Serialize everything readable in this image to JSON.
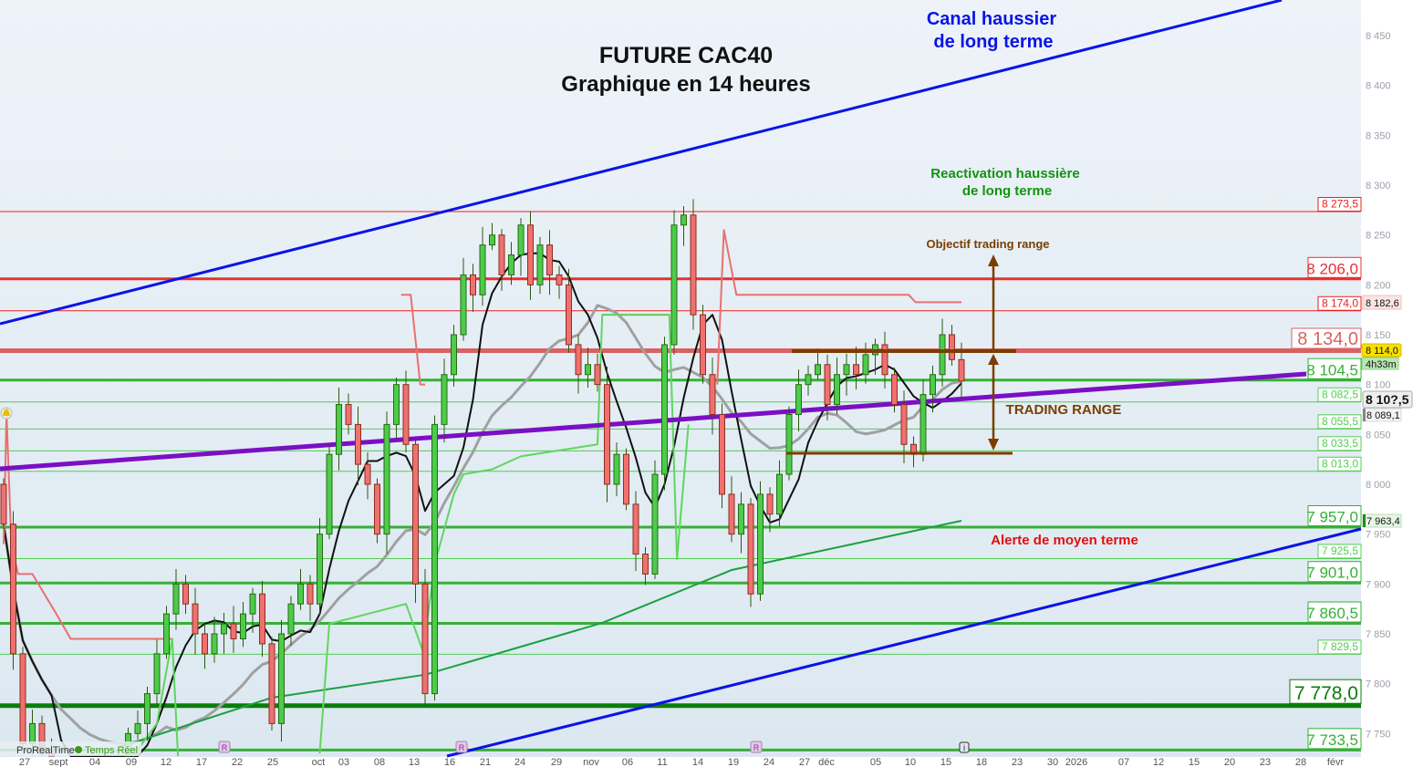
{
  "annotations": {
    "title_line1": "FUTURE CAC40",
    "title_line2": "Graphique en 14 heures",
    "channel_line1": "Canal haussier",
    "channel_line2": "de long terme",
    "reactivation_line1": "Reactivation haussière",
    "reactivation_line2": "de long terme",
    "objective": "Objectif trading range",
    "trading_range": "TRADING RANGE",
    "alert": "Alerte de moyen terme"
  },
  "footer": {
    "brand": "ProRealTime",
    "status": "Temps Réel"
  },
  "markers": {
    "r": "R",
    "info": "i"
  },
  "price_tags": {
    "upper_band": "8 182,6",
    "high": "8 114,0",
    "countdown": "4h33m",
    "last": "8 10?,5",
    "lower": "8 089,1",
    "ma_long": "7 963,4"
  },
  "colors": {
    "up": "#4ccc4c",
    "down": "#f07070",
    "channel": "#0a14e6",
    "support_trend": "#7b0fc4",
    "range": "#7a3e00"
  },
  "chart_data": {
    "type": "candlestick",
    "title": "FUTURE CAC40 — Graphique en 14 heures",
    "ylim": [
      7720,
      8470
    ],
    "y_ticks": [
      "8 450",
      "8 400",
      "8 350",
      "8 300",
      "8 250",
      "8 200",
      "8 150",
      "8 100",
      "8 050",
      "8 000",
      "7 950",
      "7 900",
      "7 850",
      "7 800",
      "7 750"
    ],
    "y_tick_values": [
      8450,
      8400,
      8350,
      8300,
      8250,
      8200,
      8150,
      8100,
      8050,
      8000,
      7950,
      7900,
      7850,
      7800,
      7750
    ],
    "x_ticks": [
      "27",
      "sept",
      "04",
      "09",
      "12",
      "17",
      "22",
      "25",
      "oct",
      "03",
      "08",
      "13",
      "16",
      "21",
      "24",
      "29",
      "nov",
      "06",
      "11",
      "14",
      "19",
      "24",
      "27",
      "déc",
      "05",
      "10",
      "15",
      "18",
      "23",
      "30",
      "2026",
      "07",
      "12",
      "15",
      "20",
      "23",
      "28",
      "févr"
    ],
    "first_open": 8000,
    "closes": [
      7960,
      7830,
      7740,
      7760,
      7730,
      7710,
      7690,
      7700,
      7680,
      7690,
      7700,
      7710,
      7720,
      7750,
      7760,
      7790,
      7830,
      7870,
      7900,
      7880,
      7850,
      7830,
      7850,
      7860,
      7845,
      7870,
      7890,
      7840,
      7760,
      7850,
      7880,
      7900,
      7880,
      7950,
      8030,
      8080,
      8060,
      8020,
      8000,
      7950,
      8060,
      8100,
      8040,
      7900,
      7790,
      8060,
      8110,
      8150,
      8210,
      8190,
      8240,
      8250,
      8210,
      8230,
      8260,
      8200,
      8240,
      8210,
      8200,
      8140,
      8110,
      8120,
      8100,
      8000,
      8030,
      7980,
      7930,
      7910,
      8010,
      8140,
      8260,
      8270,
      8170,
      8110,
      8070,
      7990,
      7950,
      7980,
      7890,
      7990,
      7970,
      8010,
      8070,
      8100,
      8110,
      8120,
      8080,
      8110,
      8120,
      8110,
      8130,
      8140,
      8110,
      8080,
      8040,
      8030,
      8090,
      8110,
      8150,
      8125,
      8103.5
    ],
    "levels": [
      {
        "price": 8273.5,
        "label": "8 273,5",
        "kind": "minor-red"
      },
      {
        "price": 8206.0,
        "label": "8 206,0",
        "kind": "major-red"
      },
      {
        "price": 8174.0,
        "label": "8 174,0",
        "kind": "minor-red"
      },
      {
        "price": 8134.0,
        "label": "8 134,0",
        "kind": "major-pink"
      },
      {
        "price": 8104.5,
        "label": "8 104,5",
        "kind": "major-green"
      },
      {
        "price": 8082.5,
        "label": "8 082,5",
        "kind": "minor-green"
      },
      {
        "price": 8055.5,
        "label": "8 055,5",
        "kind": "minor-green"
      },
      {
        "price": 8033.5,
        "label": "8 033,5",
        "kind": "minor-green"
      },
      {
        "price": 8013.0,
        "label": "8 013,0",
        "kind": "minor-green"
      },
      {
        "price": 7957.0,
        "label": "7 957,0",
        "kind": "major-green"
      },
      {
        "price": 7925.5,
        "label": "7 925,5",
        "kind": "minor-green"
      },
      {
        "price": 7901.0,
        "label": "7 901,0",
        "kind": "major-green"
      },
      {
        "price": 7860.5,
        "label": "7 860,5",
        "kind": "major-green"
      },
      {
        "price": 7829.5,
        "label": "7 829,5",
        "kind": "minor-green"
      },
      {
        "price": 7778.0,
        "label": "7 778,0",
        "kind": "key-green"
      },
      {
        "price": 7733.5,
        "label": "7 733,5",
        "kind": "major-green"
      }
    ],
    "ma_long": [
      [
        12,
        7736
      ],
      [
        28,
        7786
      ],
      [
        44,
        7809
      ],
      [
        62.5,
        7861
      ],
      [
        76,
        7914
      ],
      [
        100,
        7963.4
      ]
    ],
    "upper_step": [
      [
        [
          0,
          7940
        ],
        [
          0.3,
          8071
        ],
        [
          0.8,
          7940
        ],
        [
          1.5,
          7910
        ],
        [
          3,
          7910
        ],
        [
          5.5,
          7870
        ],
        [
          7,
          7845
        ],
        [
          17.6,
          7845
        ]
      ],
      [
        [
          41.5,
          8190
        ],
        [
          42.5,
          8190
        ],
        [
          43.5,
          8100
        ],
        [
          44,
          8100
        ]
      ],
      [
        [
          62.5,
          8170
        ],
        [
          69.5,
          8170
        ]
      ],
      [
        [
          74.5,
          8100
        ],
        [
          75.2,
          8255
        ],
        [
          76.5,
          8190
        ],
        [
          94.5,
          8190
        ],
        [
          95.2,
          8182.6
        ],
        [
          100,
          8182.6
        ]
      ]
    ],
    "lower_step": [
      [
        [
          13.5,
          7726
        ],
        [
          16,
          7760
        ],
        [
          17.6,
          7845
        ],
        [
          18.2,
          7700
        ]
      ],
      [
        [
          33,
          7730
        ],
        [
          34,
          7860
        ],
        [
          40,
          7875
        ],
        [
          42,
          7880
        ],
        [
          43.8,
          7832
        ],
        [
          45,
          7920
        ],
        [
          47,
          7990
        ],
        [
          48,
          8010
        ],
        [
          51,
          8015
        ],
        [
          54,
          8028
        ],
        [
          62,
          8040
        ],
        [
          62.5,
          8170
        ],
        [
          69.5,
          8170
        ],
        [
          70.3,
          7925
        ],
        [
          71.5,
          8060
        ]
      ]
    ]
  }
}
